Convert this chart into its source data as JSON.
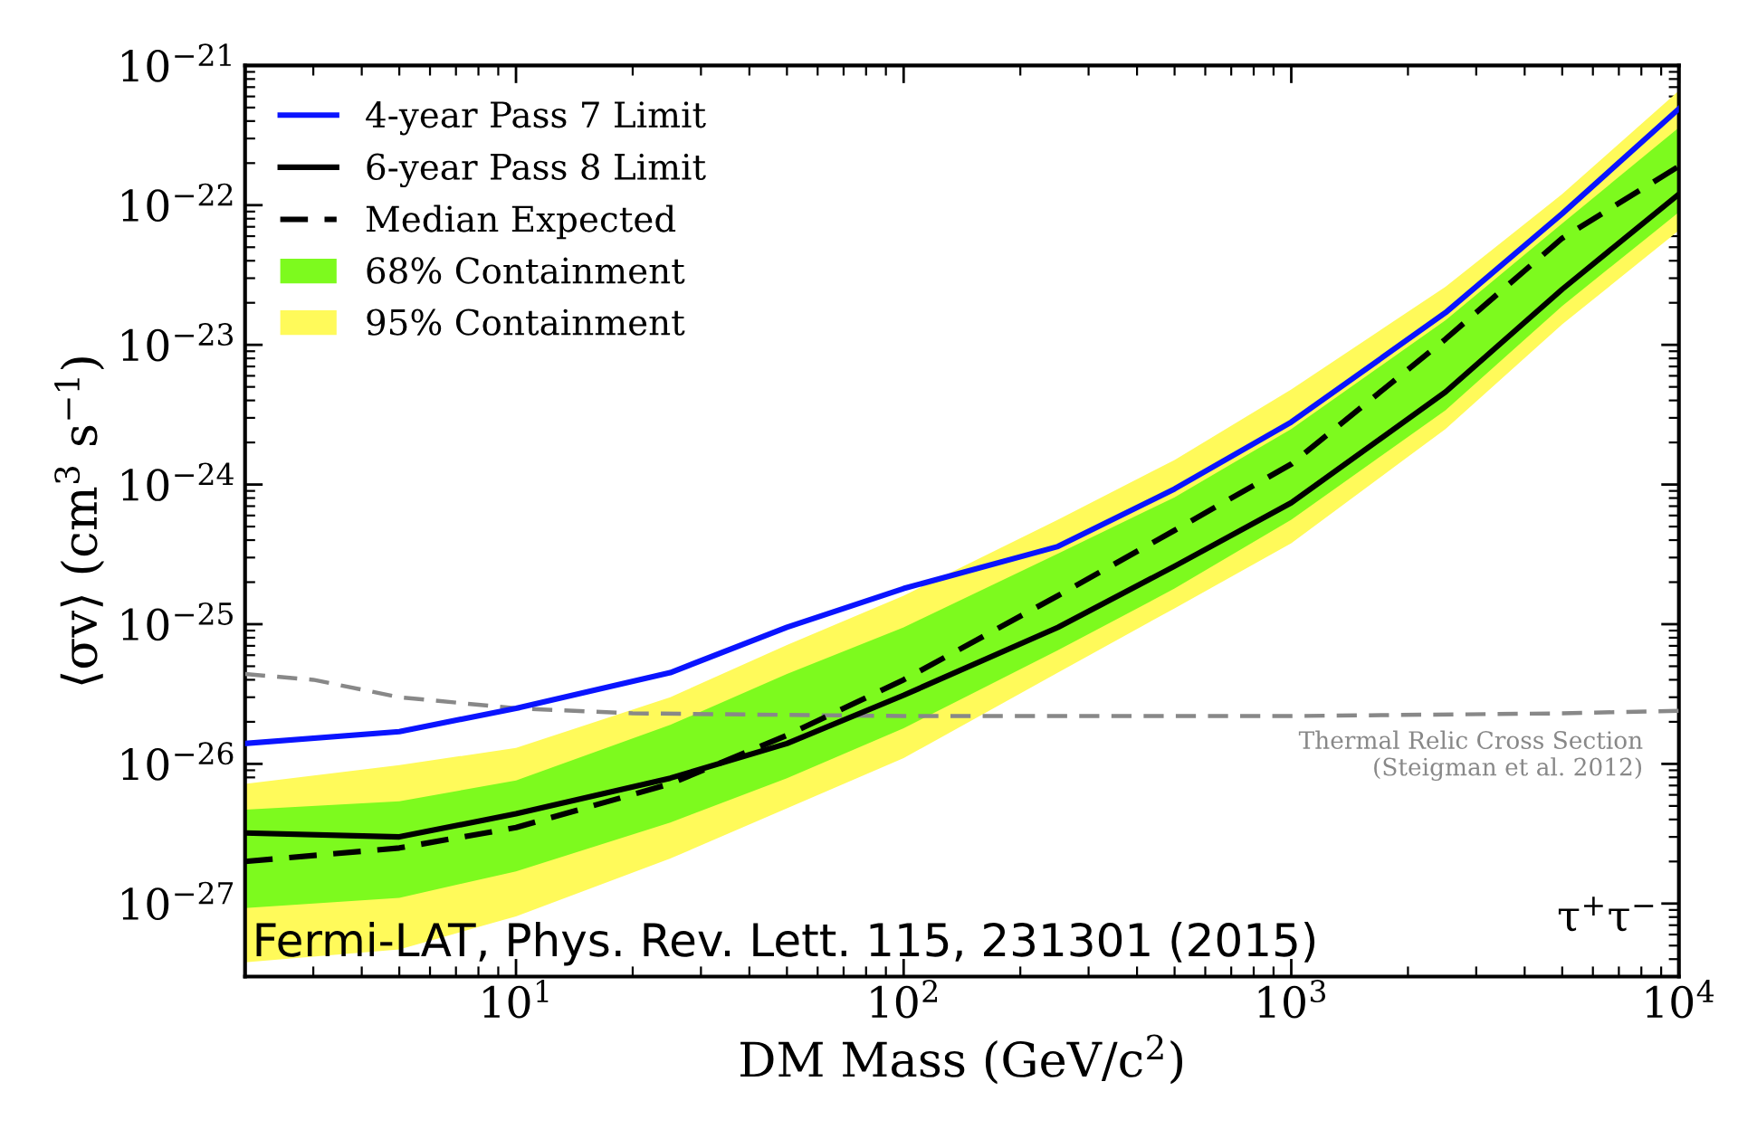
{
  "chart_data": {
    "type": "line",
    "xlabel": "DM Mass (GeV/c$^{2}$)",
    "ylabel": "⟨σv⟩ (cm$^{3}$ s$^{−1}$)",
    "log": "xy",
    "legend": "top left",
    "grid": false,
    "x": [
      2,
      5,
      10,
      25,
      50,
      100,
      250,
      500,
      1000,
      2500,
      5000,
      10000
    ],
    "xlim": [
      2,
      10000
    ],
    "xticks": [
      {
        "value": 10,
        "label": "10$^{1}$"
      },
      {
        "value": 100,
        "label": "10$^{2}$"
      },
      {
        "value": 1000,
        "label": "10$^{3}$"
      },
      {
        "value": 10000,
        "label": "10$^{4}$"
      }
    ],
    "ylim": [
      3e-28,
      1e-21
    ],
    "yticks": [
      {
        "value": 1e-27,
        "label": "10$^{−27}$"
      },
      {
        "value": 1e-26,
        "label": "10$^{−26}$"
      },
      {
        "value": 1e-25,
        "label": "10$^{−25}$"
      },
      {
        "value": 1e-24,
        "label": "10$^{−24}$"
      },
      {
        "value": 1e-23,
        "label": "10$^{−23}$"
      },
      {
        "value": 1e-22,
        "label": "10$^{−22}$"
      },
      {
        "value": 1e-21,
        "label": "10$^{−21}$"
      }
    ],
    "series": [
      {
        "name": "4-year Pass 7 Limit",
        "color": "#0a14ff",
        "line_style": "solid",
        "values": [
          1.4e-26,
          1.7e-26,
          2.5e-26,
          4.5e-26,
          9.5e-26,
          1.8e-25,
          3.6e-25,
          9.3e-25,
          2.8e-24,
          1.7e-23,
          8.7e-23,
          4.9e-22
        ]
      },
      {
        "name": "6-year Pass 8 Limit",
        "color": "#000000",
        "line_style": "solid",
        "values": [
          3.2e-27,
          3e-27,
          4.4e-27,
          7.9e-27,
          1.4e-26,
          3.1e-26,
          9.5e-26,
          2.6e-25,
          7.4e-25,
          4.6e-24,
          2.5e-23,
          1.2e-22
        ]
      },
      {
        "name": "Median Expected",
        "color": "#000000",
        "line_style": "dashed",
        "values": [
          2e-27,
          2.5e-27,
          3.5e-27,
          7.2e-27,
          1.6e-26,
          4e-26,
          1.6e-25,
          4.7e-25,
          1.4e-24,
          1.1e-23,
          5.8e-23,
          1.9e-22
        ]
      },
      {
        "name": "68% Containment",
        "color": "#7dfa1e",
        "lower": [
          9.3e-28,
          1.1e-27,
          1.7e-27,
          3.8e-27,
          7.9e-27,
          1.8e-26,
          6.5e-26,
          1.8e-25,
          5.6e-25,
          3.4e-24,
          1.9e-23,
          8.9e-23
        ],
        "values": [
          null,
          null,
          null,
          null,
          null,
          null,
          null,
          null,
          null,
          null,
          null,
          null
        ],
        "upper": [
          4.7e-27,
          5.4e-27,
          7.6e-27,
          1.9e-26,
          4.4e-26,
          9.5e-26,
          3.2e-25,
          8.1e-25,
          2.5e-24,
          1.5e-23,
          7.4e-23,
          3.6e-22
        ]
      },
      {
        "name": "95% Containment",
        "color": "#fffa5a",
        "lower": [
          3.8e-28,
          4.7e-28,
          8.1e-28,
          2.1e-27,
          4.8e-27,
          1.1e-26,
          4.5e-26,
          1.3e-25,
          3.8e-25,
          2.5e-24,
          1.4e-23,
          6.6e-23
        ],
        "values": [
          null,
          null,
          null,
          null,
          null,
          null,
          null,
          null,
          null,
          null,
          null,
          null
        ],
        "upper": [
          7.2e-27,
          9.8e-27,
          1.3e-26,
          3e-26,
          7.1e-26,
          1.6e-25,
          5.6e-25,
          1.5e-24,
          4.8e-24,
          2.6e-23,
          1.2e-22,
          6.6e-22
        ]
      },
      {
        "color": "#888888",
        "line_style": "dashed",
        "x": [
          2,
          3,
          5,
          10,
          20,
          100,
          1000,
          5000,
          10000
        ],
        "values": [
          4.4e-26,
          4e-26,
          3e-26,
          2.5e-26,
          2.3e-26,
          2.2e-26,
          2.2e-26,
          2.3e-26,
          2.4e-26
        ]
      }
    ],
    "annotations": [
      "Thermal Relic Cross Section\n(Steigman et al. 2012)",
      "τ$^{+}$τ$^{−}$",
      "Fermi-LAT, Phys. Rev. Lett. 115, 231301 (2015)"
    ]
  }
}
